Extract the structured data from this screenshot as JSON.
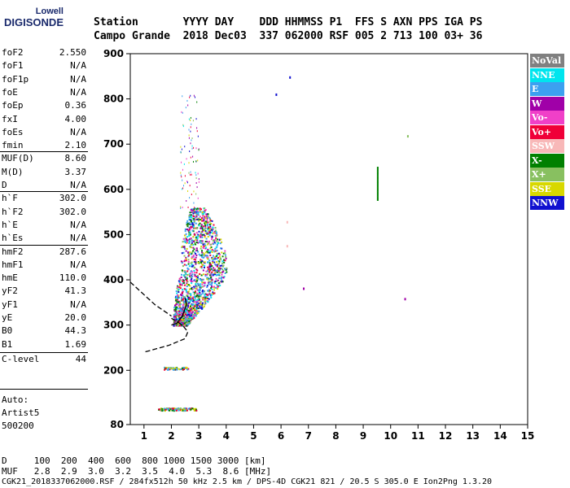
{
  "logo": {
    "line1": "Lowell",
    "line2": "DIGISONDE"
  },
  "header": {
    "row1": "Station       YYYY DAY    DDD HHMMSS P1  FFS S AXN PPS IGA PS",
    "row2": "Campo Grande  2018 Dec03  337 062000 RSF 005 2 713 100 03+ 36"
  },
  "params": [
    {
      "name": "foF2",
      "value": "2.550"
    },
    {
      "name": "foF1",
      "value": "N/A"
    },
    {
      "name": "foF1p",
      "value": "N/A"
    },
    {
      "name": "foE",
      "value": "N/A"
    },
    {
      "name": "foEp",
      "value": "0.36"
    },
    {
      "name": "fxI",
      "value": "4.00"
    },
    {
      "name": "foEs",
      "value": "N/A"
    },
    {
      "name": "fmin",
      "value": "2.10"
    },
    {
      "name": "MUF(D)",
      "value": "8.60"
    },
    {
      "name": "M(D)",
      "value": "3.37"
    },
    {
      "name": "D",
      "value": "N/A"
    },
    {
      "name": "h`F",
      "value": "302.0"
    },
    {
      "name": "h`F2",
      "value": "302.0"
    },
    {
      "name": "h`E",
      "value": "N/A"
    },
    {
      "name": "h`Es",
      "value": "N/A"
    },
    {
      "name": "hmF2",
      "value": "287.6"
    },
    {
      "name": "hmF1",
      "value": "N/A"
    },
    {
      "name": "hmE",
      "value": "110.0"
    },
    {
      "name": "yF2",
      "value": "41.3"
    },
    {
      "name": "yF1",
      "value": "N/A"
    },
    {
      "name": "yE",
      "value": "20.0"
    },
    {
      "name": "B0",
      "value": "44.3"
    },
    {
      "name": "B1",
      "value": "1.69"
    },
    {
      "name": "C-level",
      "value": "44"
    }
  ],
  "auto": {
    "line1": "Auto:",
    "line2": "Artist5",
    "line3": "500200"
  },
  "footer": {
    "d_row": "D     100  200  400  600  800 1000 1500 3000 [km]",
    "muf_row": "MUF   2.8  2.9  3.0  3.2  3.5  4.0  5.3  8.6 [MHz]",
    "info": "CGK21_2018337062000.RSF / 284fx512h 50 kHz 2.5 km / DPS-4D CGK21 821 / 20.5 S 305.0 E Ion2Png 1.3.20"
  },
  "legend": [
    {
      "label": "NoVal",
      "color": "#808080",
      "text": "#ffffff"
    },
    {
      "label": "NNE",
      "color": "#00e5ee",
      "text": "#ffffff"
    },
    {
      "label": "E",
      "color": "#3ca0f0",
      "text": "#ffffff"
    },
    {
      "label": "W",
      "color": "#a000a8",
      "text": "#ffffff"
    },
    {
      "label": "Vo-",
      "color": "#f040c8",
      "text": "#ffffff"
    },
    {
      "label": "Vo+",
      "color": "#f00038",
      "text": "#ffffff"
    },
    {
      "label": "SSW",
      "color": "#f8b8b8",
      "text": "#ffffff"
    },
    {
      "label": "X-",
      "color": "#008000",
      "text": "#ffffff"
    },
    {
      "label": "X+",
      "color": "#88c060",
      "text": "#ffffff"
    },
    {
      "label": "SSE",
      "color": "#d8d800",
      "text": "#ffffff"
    },
    {
      "label": "NNW",
      "color": "#1010d0",
      "text": "#ffffff"
    }
  ],
  "chart_data": {
    "type": "scatter",
    "title": "",
    "xlabel": "",
    "ylabel": "",
    "xlim": [
      0.5,
      15
    ],
    "ylim": [
      80,
      900
    ],
    "x_ticks": [
      "1",
      "2",
      "3",
      "4",
      "5",
      "6",
      "7",
      "8",
      "9",
      "10",
      "11",
      "12",
      "13",
      "14",
      "15"
    ],
    "y_ticks": [
      "80",
      "200",
      "300",
      "400",
      "500",
      "600",
      "700",
      "800",
      "900"
    ],
    "grid": false,
    "clusters": [
      {
        "name": "F-trace",
        "x_range": [
          1.8,
          4.3
        ],
        "y_range": [
          300,
          560
        ],
        "approx_points": 1600
      },
      {
        "name": "E-layer",
        "x_range": [
          1.7,
          2.6
        ],
        "y_center": 205,
        "approx_points": 60
      },
      {
        "name": "Es-lower",
        "x_range": [
          1.5,
          2.9
        ],
        "y_center": 115,
        "approx_points": 120
      }
    ],
    "isolated_points": [
      {
        "x": 5.8,
        "y": 812,
        "series": "NNW"
      },
      {
        "x": 6.3,
        "y": 850,
        "series": "NNW"
      },
      {
        "x": 6.8,
        "y": 383,
        "series": "W"
      },
      {
        "x": 10.5,
        "y": 360,
        "series": "W"
      },
      {
        "x": 10.6,
        "y": 720,
        "series": "X+"
      },
      {
        "x": 6.2,
        "y": 530,
        "series": "SSW"
      },
      {
        "x": 6.2,
        "y": 477,
        "series": "SSW"
      }
    ],
    "vertical_traces": [
      {
        "x": 9.5,
        "y_range": [
          580,
          650
        ],
        "series": "X-"
      }
    ],
    "profile_curve": [
      [
        2.0,
        300
      ],
      [
        2.2,
        304
      ],
      [
        2.4,
        320
      ],
      [
        2.55,
        345
      ],
      [
        2.5,
        360
      ]
    ],
    "profile_extension": [
      [
        2.0,
        315
      ],
      [
        2.4,
        300
      ],
      [
        2.6,
        285
      ],
      [
        2.5,
        270
      ],
      [
        1.9,
        255
      ],
      [
        1.0,
        240
      ]
    ],
    "profile_dashed_upper": [
      [
        0.5,
        395
      ],
      [
        1.4,
        345
      ],
      [
        2.0,
        320
      ]
    ]
  }
}
